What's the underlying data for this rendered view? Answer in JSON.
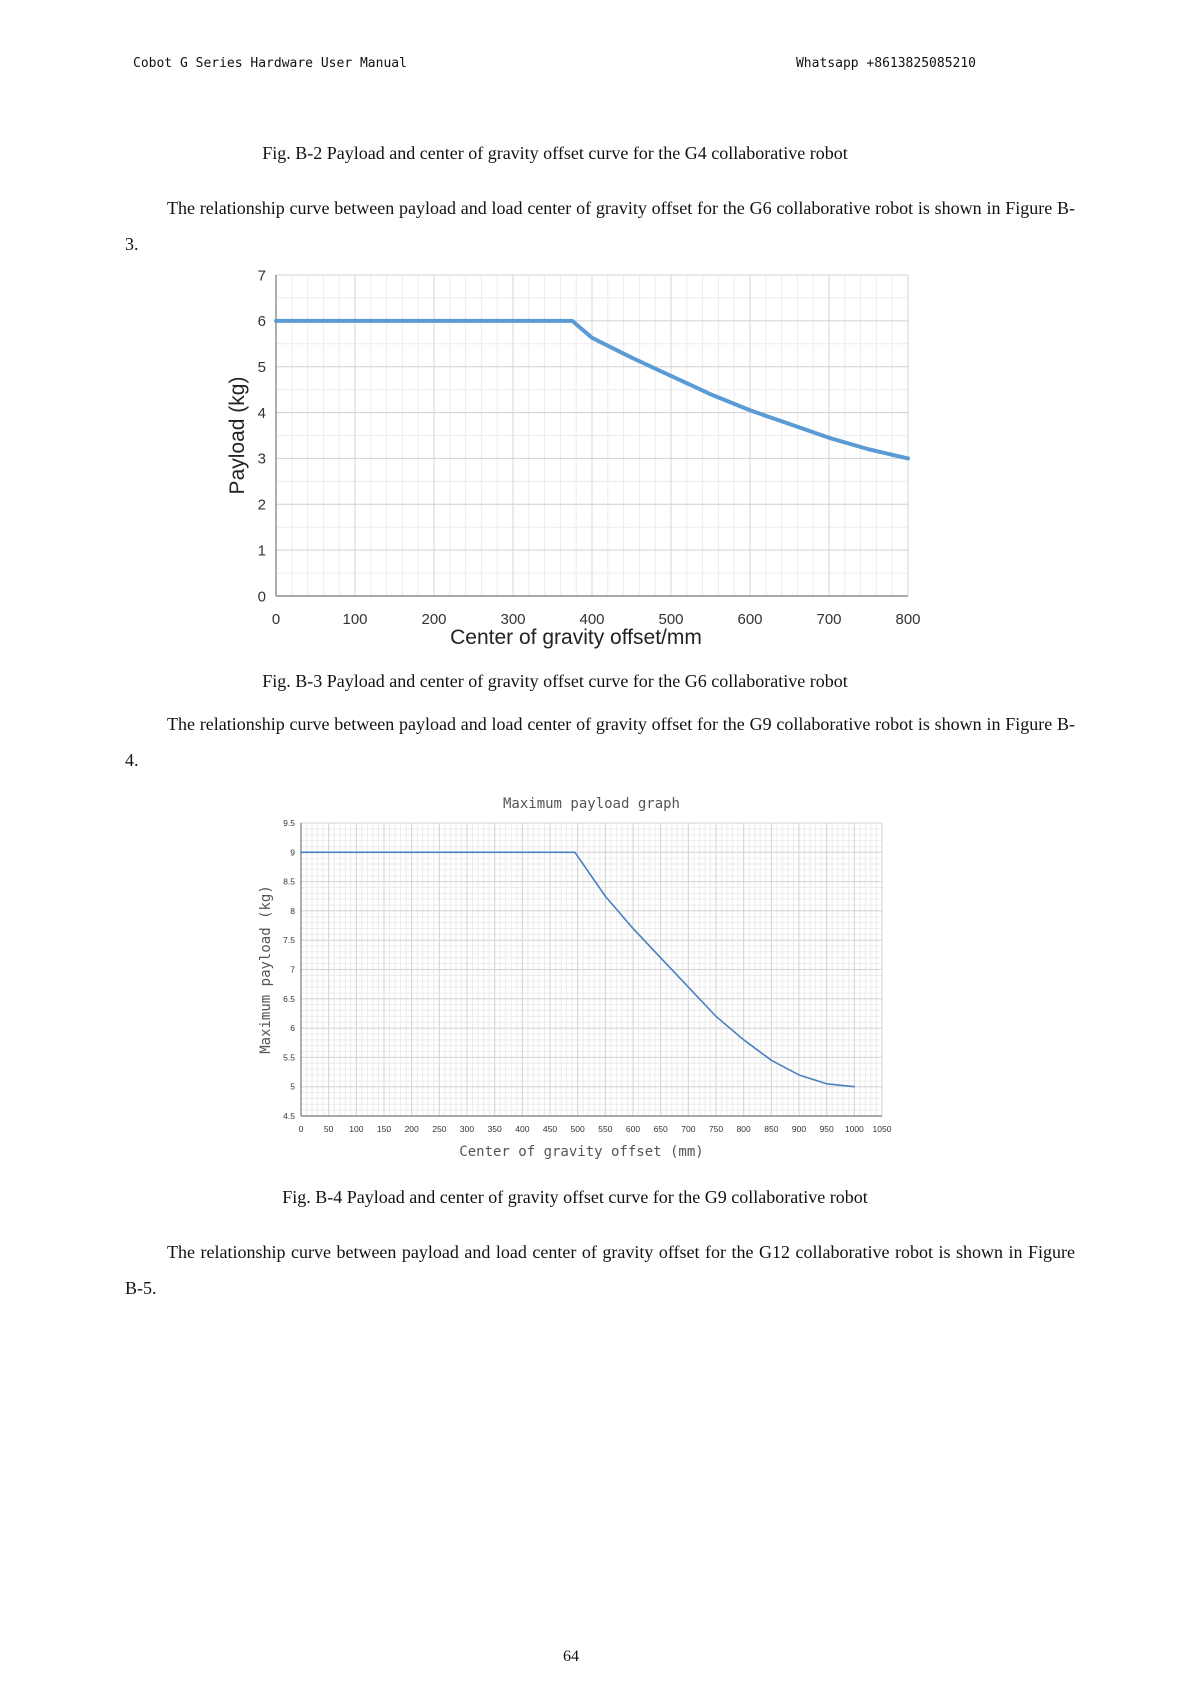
{
  "header": {
    "left": "Cobot G Series Hardware User Manual",
    "right": "Whatsapp +8613825085210"
  },
  "captions": {
    "fig_b2": "Fig. B-2 Payload and center of gravity offset curve for the G4 collaborative robot",
    "fig_b3": "Fig. B-3 Payload and center of gravity offset curve for the G6 collaborative robot",
    "fig_b4": "Fig. B-4 Payload and center of gravity offset curve for the G9 collaborative robot"
  },
  "paragraphs": {
    "g6": "The relationship curve between payload and load center of gravity offset for the G6 collaborative robot is shown in Figure B-3.",
    "g9": "The relationship curve between payload and load center of gravity offset for the G9 collaborative robot is shown in Figure B-4.",
    "g12": "The relationship curve between payload and load center of gravity offset for the G12 collaborative robot is shown in Figure B-5."
  },
  "page_number": "64",
  "chart_data": [
    {
      "type": "line",
      "title": "",
      "xlabel": "Center of gravity offset/mm",
      "ylabel": "Payload (kg)",
      "xlim": [
        0,
        800
      ],
      "ylim": [
        0,
        7
      ],
      "x_ticks": [
        0,
        100,
        200,
        300,
        400,
        500,
        600,
        700,
        800
      ],
      "y_ticks": [
        0,
        1,
        2,
        3,
        4,
        5,
        6,
        7
      ],
      "grid": true,
      "line_color": "#5b9bd5",
      "series": [
        {
          "x": [
            0,
            375,
            400,
            450,
            500,
            550,
            600,
            650,
            700,
            750,
            800
          ],
          "y": [
            6,
            6,
            5.63,
            5.2,
            4.8,
            4.4,
            4.05,
            3.75,
            3.45,
            3.2,
            3.0
          ]
        }
      ]
    },
    {
      "type": "line",
      "title": "Maximum payload graph",
      "xlabel": "Center of gravity offset (mm)",
      "ylabel": "Maximum payload (kg)",
      "xlim": [
        0,
        1050
      ],
      "ylim": [
        4.5,
        9.5
      ],
      "x_ticks": [
        0,
        50,
        100,
        150,
        200,
        250,
        300,
        350,
        400,
        450,
        500,
        550,
        600,
        650,
        700,
        750,
        800,
        850,
        900,
        950,
        1000,
        1050
      ],
      "y_ticks": [
        4.5,
        5,
        5.5,
        6,
        6.5,
        7,
        7.5,
        8,
        8.5,
        9,
        9.5
      ],
      "grid": true,
      "line_color": "#4a7fbf",
      "series": [
        {
          "x": [
            0,
            495,
            550,
            600,
            650,
            700,
            750,
            800,
            850,
            900,
            950,
            1000
          ],
          "y": [
            9,
            9,
            8.25,
            7.7,
            7.2,
            6.7,
            6.2,
            5.8,
            5.45,
            5.2,
            5.05,
            5.0
          ]
        }
      ]
    }
  ]
}
